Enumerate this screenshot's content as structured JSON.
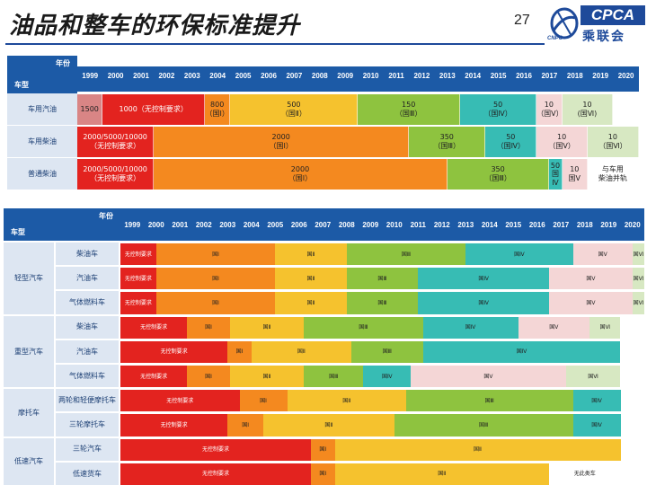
{
  "header": {
    "title": "油品和整车的环保标准提升",
    "page_number": "27"
  },
  "logo": {
    "name": "CPCA",
    "subtitle": "乘联会",
    "small": "CNPC"
  },
  "colors": {
    "header": "#1c5aa6",
    "label_bg": "#dde6f2",
    "pink": "#d98585",
    "red": "#e3231f",
    "orange": "#f4891f",
    "yellow": "#f5c22e",
    "green": "#8ec33f",
    "teal": "#37bcb4",
    "light_pink": "#f4d6d6",
    "light_green": "#d7e8c2"
  },
  "years": [
    "1999",
    "2000",
    "2001",
    "2002",
    "2003",
    "2004",
    "2005",
    "2006",
    "2007",
    "2008",
    "2009",
    "2010",
    "2011",
    "2012",
    "2013",
    "2014",
    "2015",
    "2016",
    "2017",
    "2018",
    "2019",
    "2020"
  ],
  "fuel_table": {
    "corner_year": "年份",
    "corner_type": "车型",
    "rows": [
      {
        "label": "车用汽油",
        "segments": [
          {
            "text": "1500",
            "span": 1,
            "color": "pink"
          },
          {
            "text": "1000（无控制要求）",
            "span": 4,
            "color": "red"
          },
          {
            "text": "800\n（国Ⅰ）",
            "span": 1,
            "color": "orange"
          },
          {
            "text": "500\n（国Ⅱ）",
            "span": 5,
            "color": "yellow"
          },
          {
            "text": "150\n（国Ⅲ）",
            "span": 4,
            "color": "green"
          },
          {
            "text": "50\n（国Ⅳ）",
            "span": 3,
            "color": "teal"
          },
          {
            "text": "10\n（国Ⅴ）",
            "span": 1,
            "color": "light_pink"
          },
          {
            "text": "10\n(国Ⅵ)",
            "span": 2,
            "color": "light_green"
          }
        ]
      },
      {
        "label": "车用柴油",
        "segments": [
          {
            "text": "2000/5000/10000\n（无控制要求）",
            "span": 3,
            "color": "red"
          },
          {
            "text": "2000\n（国Ⅰ）",
            "span": 10,
            "color": "orange"
          },
          {
            "text": "350\n（国Ⅲ）",
            "span": 3,
            "color": "green"
          },
          {
            "text": "50\n（国Ⅳ）",
            "span": 2,
            "color": "teal"
          },
          {
            "text": "10\n（国Ⅴ）",
            "span": 2,
            "color": "light_pink"
          },
          {
            "text": "10\n（国Ⅵ）",
            "span": 2,
            "color": "light_green"
          }
        ]
      },
      {
        "label": "普通柴油",
        "segments": [
          {
            "text": "2000/5000/10000\n（无控制要求）",
            "span": 3,
            "color": "red"
          },
          {
            "text": "2000\n（国Ⅰ）",
            "span": 11.5,
            "color": "orange"
          },
          {
            "text": "350\n（国Ⅲ）",
            "span": 4,
            "color": "green"
          },
          {
            "text": "50\n国Ⅳ",
            "span": 0.5,
            "color": "teal"
          },
          {
            "text": "10\n国Ⅴ",
            "span": 1,
            "color": "light_pink"
          },
          {
            "text": "与车用\n柴油并轨",
            "span": 2,
            "color": "white"
          }
        ]
      }
    ]
  },
  "vehicle_table": {
    "corner_year": "年份",
    "corner_type": "车型",
    "groups": [
      {
        "label": "轻型汽车",
        "rows": [
          {
            "label": "柴油车",
            "segments": [
              {
                "text": "无控制要求",
                "span": 1.5,
                "color": "red"
              },
              {
                "text": "国Ⅰ",
                "span": 5,
                "color": "orange"
              },
              {
                "text": "国Ⅱ",
                "span": 3,
                "color": "yellow"
              },
              {
                "text": "国Ⅲ",
                "span": 5,
                "color": "green"
              },
              {
                "text": "国Ⅳ",
                "span": 4.5,
                "color": "teal"
              },
              {
                "text": "国Ⅴ",
                "span": 2.5,
                "color": "light_pink"
              },
              {
                "text": "国Ⅵ",
                "span": 0.5,
                "color": "light_green"
              }
            ]
          },
          {
            "label": "汽油车",
            "segments": [
              {
                "text": "无控制要求",
                "span": 1.5,
                "color": "red"
              },
              {
                "text": "国Ⅰ",
                "span": 5,
                "color": "orange"
              },
              {
                "text": "国Ⅱ",
                "span": 3,
                "color": "yellow"
              },
              {
                "text": "国Ⅲ",
                "span": 3,
                "color": "green"
              },
              {
                "text": "国Ⅳ",
                "span": 5.5,
                "color": "teal"
              },
              {
                "text": "国Ⅴ",
                "span": 3.5,
                "color": "light_pink"
              },
              {
                "text": "国Ⅵ",
                "span": 0.5,
                "color": "light_green"
              }
            ]
          },
          {
            "label": "气体燃料车",
            "segments": [
              {
                "text": "无控制要求",
                "span": 1.5,
                "color": "red"
              },
              {
                "text": "国Ⅰ",
                "span": 5,
                "color": "orange"
              },
              {
                "text": "国Ⅱ",
                "span": 3,
                "color": "yellow"
              },
              {
                "text": "国Ⅲ",
                "span": 3,
                "color": "green"
              },
              {
                "text": "国Ⅳ",
                "span": 5.5,
                "color": "teal"
              },
              {
                "text": "国Ⅴ",
                "span": 3.5,
                "color": "light_pink"
              },
              {
                "text": "国Ⅵ",
                "span": 0.5,
                "color": "light_green"
              }
            ]
          }
        ]
      },
      {
        "label": "重型汽车",
        "rows": [
          {
            "label": "柴油车",
            "segments": [
              {
                "text": "无控制要求",
                "span": 2.8,
                "color": "red"
              },
              {
                "text": "国Ⅰ",
                "span": 1.8,
                "color": "orange"
              },
              {
                "text": "国Ⅱ",
                "span": 3.1,
                "color": "yellow"
              },
              {
                "text": "国Ⅲ",
                "span": 5,
                "color": "green"
              },
              {
                "text": "国Ⅳ",
                "span": 4,
                "color": "teal"
              },
              {
                "text": "国Ⅴ",
                "span": 3,
                "color": "light_pink"
              },
              {
                "text": "国Ⅵ",
                "span": 1.3,
                "color": "light_green"
              }
            ]
          },
          {
            "label": "汽油车",
            "segments": [
              {
                "text": "无控制要求",
                "span": 4.5,
                "color": "red"
              },
              {
                "text": "国Ⅰ",
                "span": 1,
                "color": "orange"
              },
              {
                "text": "国Ⅱ",
                "span": 4.2,
                "color": "yellow"
              },
              {
                "text": "国Ⅲ",
                "span": 3,
                "color": "green"
              },
              {
                "text": "国Ⅳ",
                "span": 8.3,
                "color": "teal"
              }
            ]
          },
          {
            "label": "气体燃料车",
            "segments": [
              {
                "text": "无控制要求",
                "span": 2.8,
                "color": "red"
              },
              {
                "text": "国Ⅰ",
                "span": 1.8,
                "color": "orange"
              },
              {
                "text": "国Ⅱ",
                "span": 3.1,
                "color": "yellow"
              },
              {
                "text": "国Ⅲ",
                "span": 2.5,
                "color": "green"
              },
              {
                "text": "国Ⅳ",
                "span": 2,
                "color": "teal"
              },
              {
                "text": "国Ⅴ",
                "span": 6.5,
                "color": "light_pink"
              },
              {
                "text": "国Ⅵ",
                "span": 2.3,
                "color": "light_green"
              }
            ]
          }
        ]
      },
      {
        "label": "摩托车",
        "rows": [
          {
            "label": "两轮和轻便摩托车",
            "segments": [
              {
                "text": "无控制要求",
                "span": 5,
                "color": "red"
              },
              {
                "text": "国Ⅰ",
                "span": 2,
                "color": "orange"
              },
              {
                "text": "国Ⅱ",
                "span": 5,
                "color": "yellow"
              },
              {
                "text": "国Ⅲ",
                "span": 7,
                "color": "green"
              },
              {
                "text": "国Ⅳ",
                "span": 2,
                "color": "teal"
              }
            ]
          },
          {
            "label": "三轮摩托车",
            "segments": [
              {
                "text": "无控制要求",
                "span": 4.5,
                "color": "red"
              },
              {
                "text": "国Ⅰ",
                "span": 1.5,
                "color": "orange"
              },
              {
                "text": "国Ⅱ",
                "span": 5.5,
                "color": "yellow"
              },
              {
                "text": "国Ⅲ",
                "span": 7.5,
                "color": "green"
              },
              {
                "text": "国Ⅳ",
                "span": 2,
                "color": "teal"
              }
            ]
          }
        ]
      },
      {
        "label": "低速汽车",
        "rows": [
          {
            "label": "三轮汽车",
            "segments": [
              {
                "text": "无控制要求",
                "span": 8,
                "color": "red"
              },
              {
                "text": "国Ⅰ",
                "span": 1,
                "color": "orange"
              },
              {
                "text": "国Ⅱ",
                "span": 12,
                "color": "yellow"
              }
            ]
          },
          {
            "label": "低速货车",
            "segments": [
              {
                "text": "无控制要求",
                "span": 8,
                "color": "red"
              },
              {
                "text": "国Ⅰ",
                "span": 1,
                "color": "orange"
              },
              {
                "text": "国Ⅱ",
                "span": 9,
                "color": "yellow"
              },
              {
                "text": "无此类车",
                "span": 3,
                "color": "white"
              }
            ]
          }
        ]
      }
    ]
  }
}
